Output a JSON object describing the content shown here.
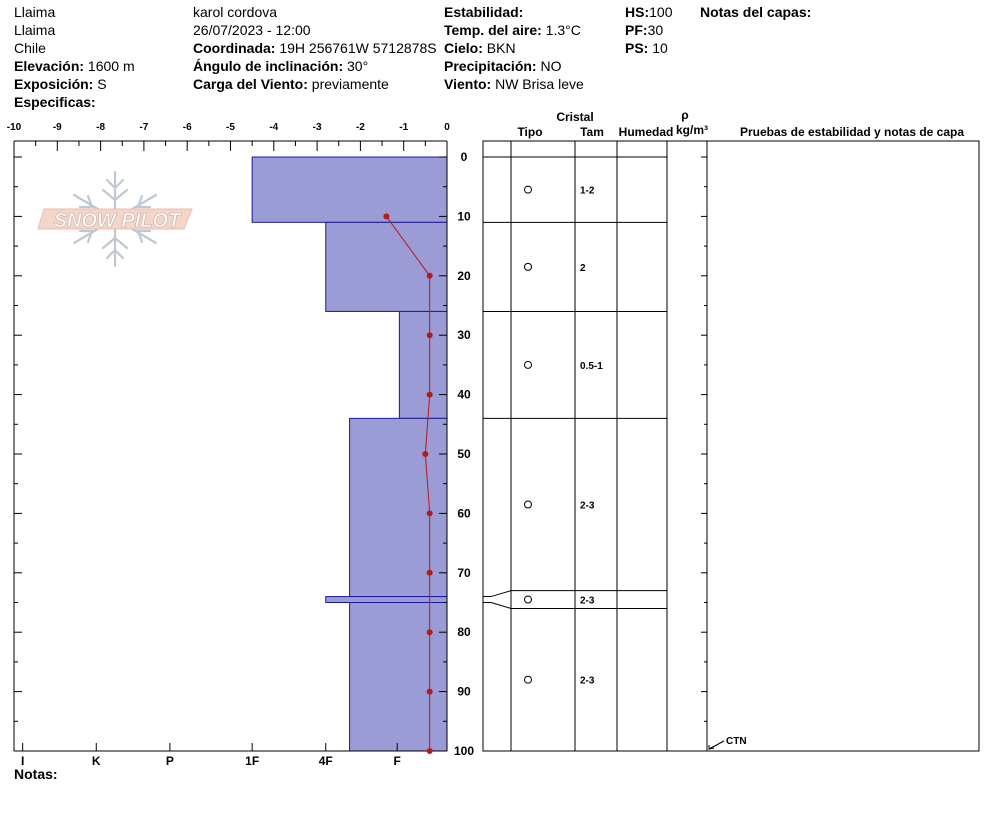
{
  "header": {
    "col1": {
      "line1": "Llaima",
      "line2": "Llaima",
      "line3": "Chile",
      "elev_label": "Elevación:",
      "elev_value": "1600 m",
      "expo_label": "Exposición:",
      "expo_value": "S",
      "spec_label": "Especificas:"
    },
    "col2": {
      "observer": "karol cordova",
      "datetime": "26/07/2023 - 12:00",
      "coord_label": "Coordinada:",
      "coord_value": "19H 256761W 5712878S",
      "slope_label": "Ángulo de inclinación:",
      "slope_value": "30°",
      "wind_load_label": "Carga del Viento:",
      "wind_load_value": "previamente"
    },
    "col3": {
      "stab_label": "Estabilidad:",
      "air_label": "Temp. del aire:",
      "air_value": "1.3°C",
      "sky_label": "Cielo:",
      "sky_value": "BKN",
      "precip_label": "Precipitación:",
      "precip_value": "NO",
      "wind_label": "Viento:",
      "wind_value": "NW Brisa leve"
    },
    "col4": {
      "hs_label": "HS:",
      "hs_value": "100",
      "pf_label": "PF:",
      "pf_value": "30",
      "ps_label": "PS:",
      "ps_value": "10"
    },
    "notes_layers_label": "Notas del capas:"
  },
  "logo": {
    "text": "SNOW PILOT"
  },
  "footer": {
    "notes_label": "Notas:"
  },
  "table": {
    "cristal_label": "Cristal",
    "tipo_label": "Tipo",
    "tam_label": "Tam",
    "humedad_label": "Humedad",
    "rho_label": "ρ",
    "density_unit": "kg/m³",
    "tests_label": "Pruebas de estabilidad y notas de capa",
    "ctn_label": "CTN"
  },
  "colors": {
    "hardness_fill": "#9b9bd6",
    "hardness_stroke": "#1a1a9c",
    "temp_line": "#b31b1b"
  },
  "chart_data": {
    "type": "snow-profile",
    "temperature_axis": {
      "ticks": [
        "-10",
        "-9",
        "-8",
        "-7",
        "-6",
        "-5",
        "-4",
        "-3",
        "-2",
        "-1",
        "0"
      ],
      "range": [
        -10,
        0
      ]
    },
    "depth_axis": {
      "ticks": [
        "0",
        "10",
        "20",
        "30",
        "40",
        "50",
        "60",
        "70",
        "80",
        "90",
        "100"
      ],
      "range": [
        0,
        100
      ]
    },
    "hardness_axis": {
      "ticks": [
        "I",
        "K",
        "P",
        "1F",
        "4F",
        "F"
      ]
    },
    "temperature_profile": [
      {
        "depth": 10,
        "temp": -1.4
      },
      {
        "depth": 20,
        "temp": -0.4
      },
      {
        "depth": 30,
        "temp": -0.4
      },
      {
        "depth": 40,
        "temp": -0.4
      },
      {
        "depth": 50,
        "temp": -0.5
      },
      {
        "depth": 60,
        "temp": -0.4
      },
      {
        "depth": 70,
        "temp": -0.4
      },
      {
        "depth": 80,
        "temp": -0.4
      },
      {
        "depth": 90,
        "temp": -0.4
      },
      {
        "depth": 100,
        "temp": -0.4
      }
    ],
    "layers": [
      {
        "top": 0,
        "bottom": 11,
        "hardness_temp_equiv": -4.5,
        "crystal": "round",
        "size": "1-2"
      },
      {
        "top": 11,
        "bottom": 26,
        "hardness_temp_equiv": -2.8,
        "crystal": "round",
        "size": "2"
      },
      {
        "top": 26,
        "bottom": 44,
        "hardness_temp_equiv": -1.1,
        "crystal": "round",
        "size": "0.5-1"
      },
      {
        "top": 44,
        "bottom": 74,
        "hardness_temp_equiv": -2.25,
        "crystal": "round",
        "size": "2-3"
      },
      {
        "top": 74,
        "bottom": 75,
        "hardness_temp_equiv": -2.8,
        "crystal": "round",
        "size": "2-3"
      },
      {
        "top": 75,
        "bottom": 100,
        "hardness_temp_equiv": -2.25,
        "crystal": "round",
        "size": "2-3"
      }
    ],
    "table_layers": [
      {
        "top": 0,
        "bottom": 11,
        "size": "1-2"
      },
      {
        "top": 11,
        "bottom": 26,
        "size": "2"
      },
      {
        "top": 26,
        "bottom": 44,
        "size": "0.5-1"
      },
      {
        "top": 44,
        "bottom": 73,
        "size": "2-3"
      },
      {
        "top": 73,
        "bottom": 76,
        "size": "2-3"
      },
      {
        "top": 76,
        "bottom": 100,
        "size": "2-3"
      }
    ],
    "test_marker": {
      "depth": 100,
      "label": "CTN"
    }
  }
}
